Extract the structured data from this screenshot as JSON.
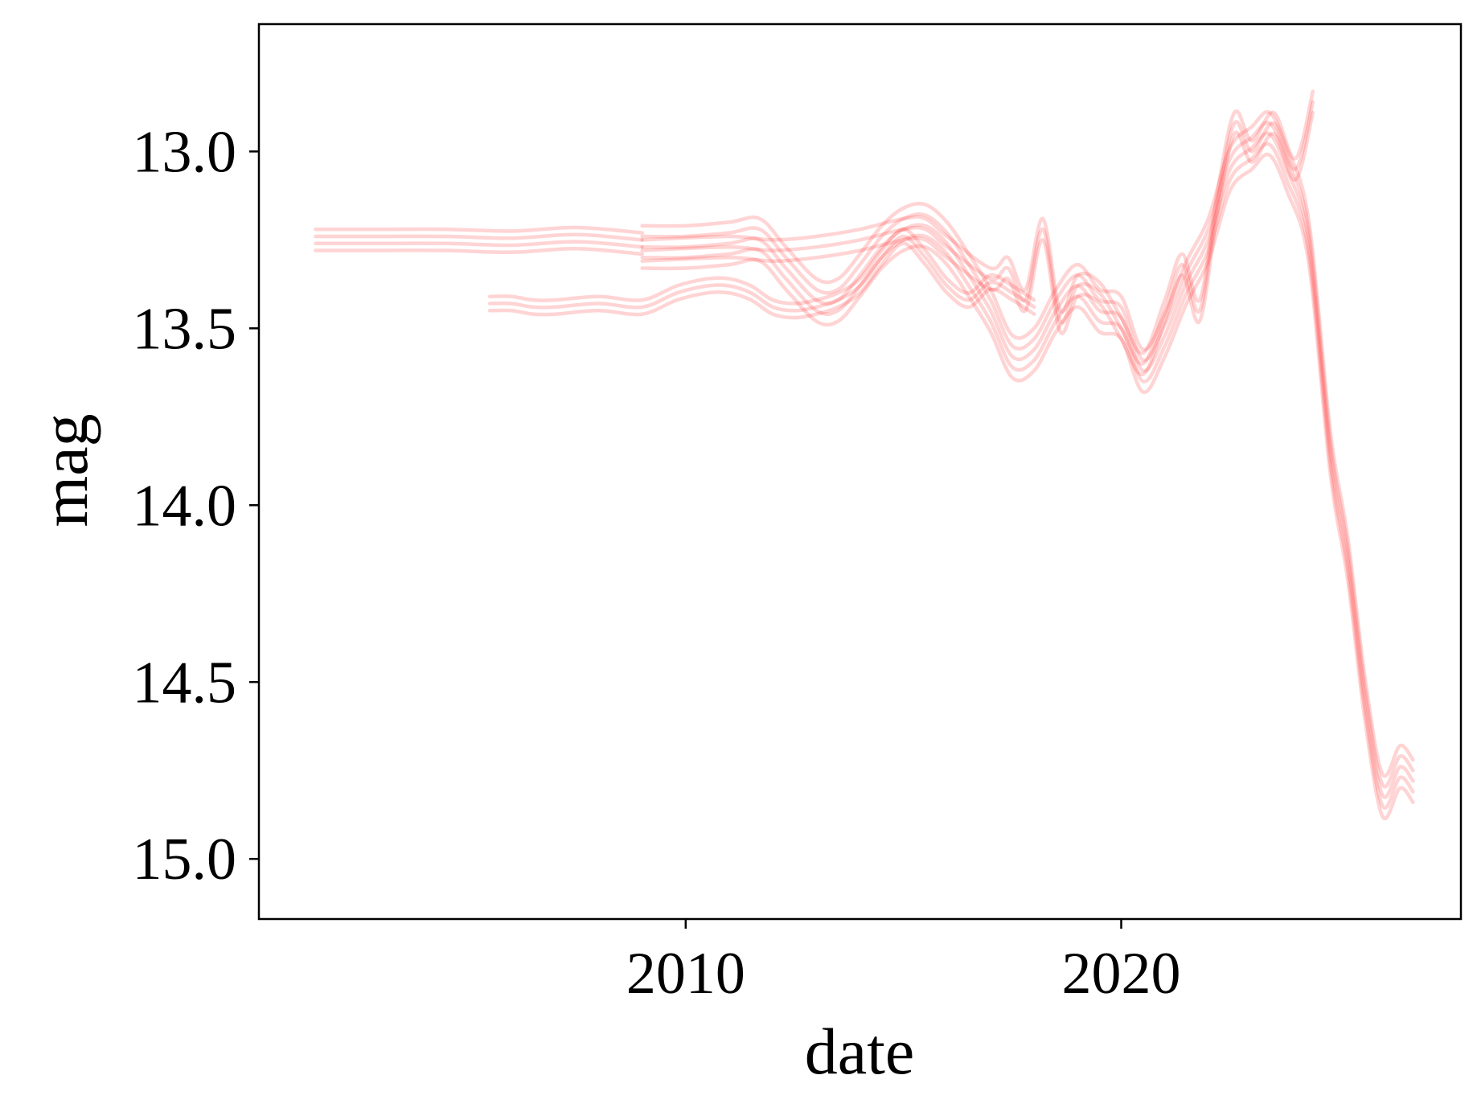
{
  "chart_data": {
    "type": "line",
    "title": "",
    "xlabel": "date",
    "ylabel": "mag",
    "xlim": [
      2000.2,
      2027.8
    ],
    "ylim": [
      15.17,
      12.64
    ],
    "y_inverted": true,
    "xticks": [
      {
        "value": 2010,
        "label": "2010"
      },
      {
        "value": 2020,
        "label": "2020"
      }
    ],
    "yticks": [
      {
        "value": 13.0,
        "label": "13.0"
      },
      {
        "value": 13.5,
        "label": "13.5"
      },
      {
        "value": 14.0,
        "label": "14.0"
      },
      {
        "value": 14.5,
        "label": "14.5"
      },
      {
        "value": 15.0,
        "label": "15.0"
      }
    ],
    "grid": false,
    "legend": "none",
    "line_color": "#ff2a2a",
    "series": [
      {
        "x": [
          2001.5,
          2003.0,
          2004.5,
          2006.0,
          2007.5,
          2009.0
        ],
        "values": [
          13.26,
          13.26,
          13.26,
          13.265,
          13.255,
          13.27
        ],
        "offsets": [
          -0.04,
          -0.02,
          0.0,
          0.02
        ]
      },
      {
        "x": [
          2005.5,
          2006.0,
          2006.5,
          2007.0,
          2008.0,
          2009.0,
          2009.8,
          2010.5,
          2011.0,
          2011.5,
          2012.0,
          2012.5,
          2013.0,
          2013.5,
          2014.0,
          2014.5,
          2015.0,
          2015.5,
          2016.0,
          2016.5,
          2017.0,
          2017.5,
          2018.0
        ],
        "values": [
          13.43,
          13.43,
          13.44,
          13.44,
          13.43,
          13.44,
          13.4,
          13.38,
          13.38,
          13.4,
          13.44,
          13.45,
          13.44,
          13.42,
          13.38,
          13.3,
          13.24,
          13.3,
          13.38,
          13.42,
          13.37,
          13.4,
          13.44
        ],
        "offsets": [
          -0.02,
          0.0,
          0.02
        ]
      },
      {
        "x": [
          2009.0,
          2010.0,
          2011.0,
          2011.7,
          2012.3,
          2013.0,
          2013.5,
          2014.0,
          2014.5,
          2015.0,
          2015.5,
          2016.0,
          2016.5,
          2017.0,
          2017.5,
          2018.0,
          2018.5,
          2019.0,
          2019.5,
          2020.0,
          2020.5,
          2021.0,
          2021.5,
          2022.0,
          2022.5,
          2023.0,
          2023.4,
          2023.8,
          2024.3,
          2024.8,
          2025.2,
          2025.6,
          2026.0,
          2026.4,
          2026.7
        ],
        "values": [
          13.27,
          13.27,
          13.26,
          13.25,
          13.33,
          13.42,
          13.42,
          13.35,
          13.27,
          13.22,
          13.21,
          13.26,
          13.35,
          13.45,
          13.58,
          13.56,
          13.45,
          13.38,
          13.45,
          13.47,
          13.62,
          13.52,
          13.37,
          13.25,
          13.05,
          12.99,
          12.95,
          13.05,
          13.25,
          13.85,
          14.15,
          14.55,
          14.82,
          14.74,
          14.78
        ],
        "offsets": [
          -0.06,
          -0.03,
          0.0,
          0.03,
          0.06
        ]
      },
      {
        "x": [
          2009.0,
          2011.0,
          2012.0,
          2013.0,
          2014.0,
          2015.0,
          2015.5,
          2016.0,
          2017.0,
          2017.4,
          2017.8,
          2018.2,
          2018.6,
          2019.0,
          2019.5,
          2020.0,
          2020.5,
          2021.0,
          2021.4,
          2021.8,
          2022.2,
          2022.6,
          2023.0,
          2023.5,
          2024.0,
          2024.4
        ],
        "values": [
          13.28,
          13.27,
          13.28,
          13.27,
          13.25,
          13.22,
          13.22,
          13.27,
          13.36,
          13.33,
          13.42,
          13.22,
          13.48,
          13.38,
          13.4,
          13.5,
          13.6,
          13.45,
          13.32,
          13.45,
          13.15,
          12.92,
          13.0,
          12.92,
          13.05,
          12.86
        ],
        "offsets": [
          -0.03,
          0.0,
          0.03
        ]
      }
    ]
  }
}
